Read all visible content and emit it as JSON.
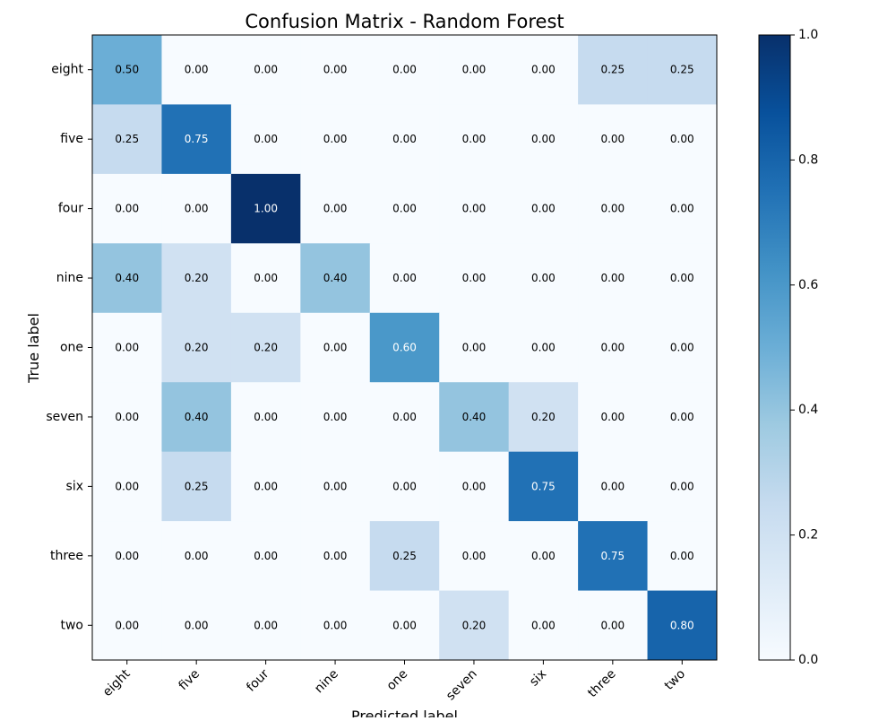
{
  "chart_data": {
    "type": "heatmap",
    "title": "Confusion Matrix - Random Forest",
    "xlabel": "Predicted label",
    "ylabel": "True label",
    "x_categories": [
      "eight",
      "five",
      "four",
      "nine",
      "one",
      "seven",
      "six",
      "three",
      "two"
    ],
    "y_categories": [
      "eight",
      "five",
      "four",
      "nine",
      "one",
      "seven",
      "six",
      "three",
      "two"
    ],
    "values": [
      [
        0.5,
        0.0,
        0.0,
        0.0,
        0.0,
        0.0,
        0.0,
        0.25,
        0.25
      ],
      [
        0.25,
        0.75,
        0.0,
        0.0,
        0.0,
        0.0,
        0.0,
        0.0,
        0.0
      ],
      [
        0.0,
        0.0,
        1.0,
        0.0,
        0.0,
        0.0,
        0.0,
        0.0,
        0.0
      ],
      [
        0.4,
        0.2,
        0.0,
        0.4,
        0.0,
        0.0,
        0.0,
        0.0,
        0.0
      ],
      [
        0.0,
        0.2,
        0.2,
        0.0,
        0.6,
        0.0,
        0.0,
        0.0,
        0.0
      ],
      [
        0.0,
        0.4,
        0.0,
        0.0,
        0.0,
        0.4,
        0.2,
        0.0,
        0.0
      ],
      [
        0.0,
        0.25,
        0.0,
        0.0,
        0.0,
        0.0,
        0.75,
        0.0,
        0.0
      ],
      [
        0.0,
        0.0,
        0.0,
        0.0,
        0.25,
        0.0,
        0.0,
        0.75,
        0.0
      ],
      [
        0.0,
        0.0,
        0.0,
        0.0,
        0.0,
        0.2,
        0.0,
        0.0,
        0.8
      ]
    ],
    "value_format_decimals": 2,
    "colormap": "Blues",
    "colorbar": {
      "range": [
        0.0,
        1.0
      ],
      "ticks": [
        "0.0",
        "0.2",
        "0.4",
        "0.6",
        "0.8",
        "1.0"
      ]
    },
    "text_color_threshold": 0.5,
    "colors": {
      "text_dark": "#000000",
      "text_light": "#ffffff",
      "axis": "#000000"
    },
    "grid": false
  }
}
